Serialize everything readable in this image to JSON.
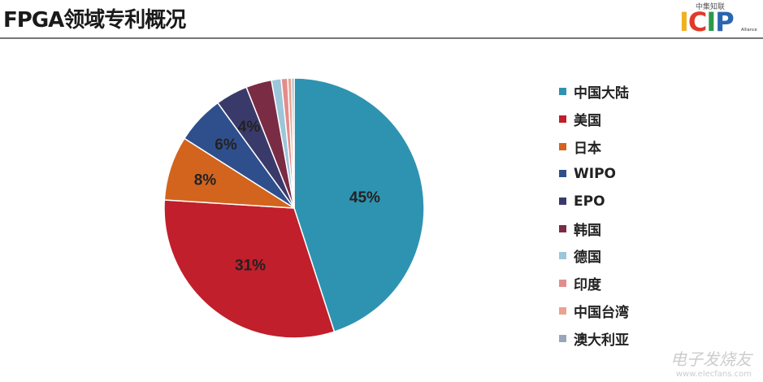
{
  "header": {
    "title": "FPGA领域专利概况",
    "logo": {
      "cn": "中集知联",
      "main": "ICIP",
      "sub": "Alliance"
    }
  },
  "chart_data": {
    "type": "pie",
    "title": "",
    "start": "top",
    "direction": "clockwise",
    "legend_position": "right",
    "categories": [
      "中国大陆",
      "美国",
      "日本",
      "WIPO",
      "EPO",
      "韩国",
      "德国",
      "印度",
      "中国台湾",
      "澳大利亚"
    ],
    "values": [
      45,
      31,
      8,
      6,
      4,
      3.2,
      1.2,
      0.8,
      0.5,
      0.3
    ],
    "labels": [
      "45%",
      "31%",
      "8%",
      "6%",
      "4%",
      "",
      "",
      "",
      "",
      ""
    ],
    "colors": [
      "#2e93b0",
      "#c01f2b",
      "#d2641e",
      "#2f4f8c",
      "#3a3a6a",
      "#7a2c44",
      "#9cc6d9",
      "#e38c8c",
      "#eba28f",
      "#9aa6b8"
    ]
  },
  "watermark": {
    "brand": "电子发烧友",
    "url": "www.elecfans.com"
  }
}
